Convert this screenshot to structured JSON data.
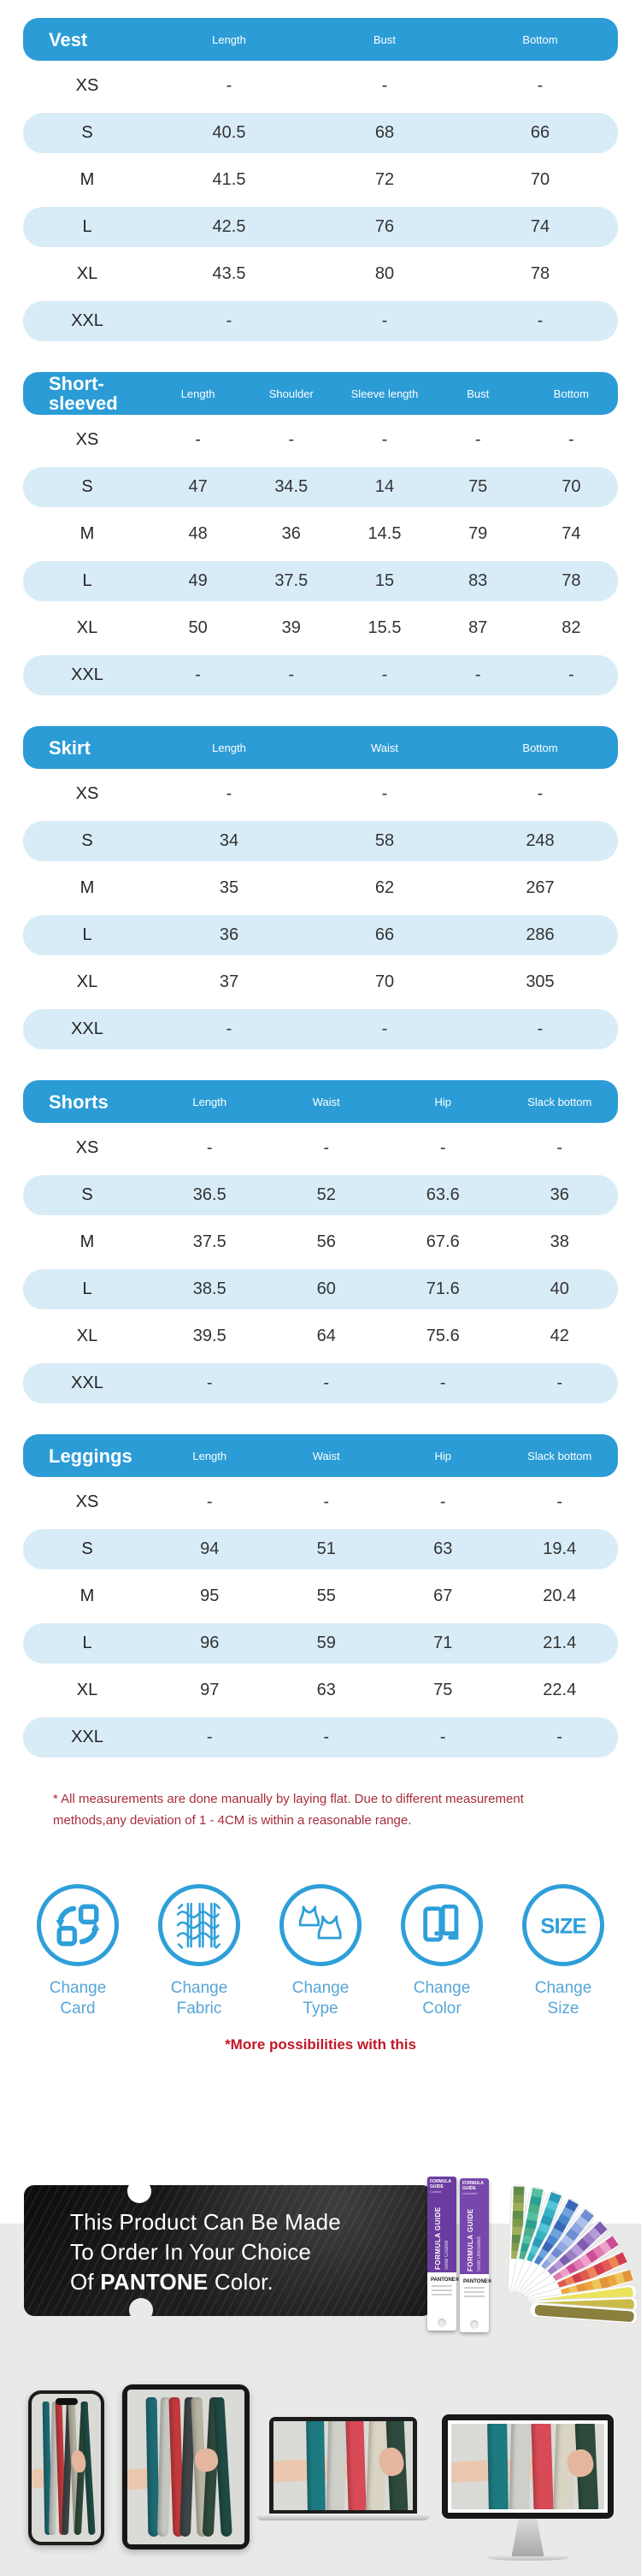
{
  "colors": {
    "accent_blue": "#2E9FD9",
    "header_blue": "#2B9CD6",
    "row_alt_blue": "#D8ECF8",
    "label_blue": "#56A6D9",
    "disclaimer_red": "#A82C3A",
    "note_red": "#C11728",
    "gray_background": "#E9E9E8",
    "pantone_purple": "#6A3C9F"
  },
  "tables": [
    {
      "name": "Vest",
      "columns": [
        "Length",
        "Bust",
        "Bottom"
      ],
      "rows": [
        {
          "size": "XS",
          "values": [
            "-",
            "-",
            "-"
          ]
        },
        {
          "size": "S",
          "values": [
            "40.5",
            "68",
            "66"
          ]
        },
        {
          "size": "M",
          "values": [
            "41.5",
            "72",
            "70"
          ]
        },
        {
          "size": "L",
          "values": [
            "42.5",
            "76",
            "74"
          ]
        },
        {
          "size": "XL",
          "values": [
            "43.5",
            "80",
            "78"
          ]
        },
        {
          "size": "XXL",
          "values": [
            "-",
            "-",
            "-"
          ]
        }
      ]
    },
    {
      "name": "Short-sleeved",
      "columns": [
        "Length",
        "Shoulder",
        "Sleeve length",
        "Bust",
        "Bottom"
      ],
      "rows": [
        {
          "size": "XS",
          "values": [
            "-",
            "-",
            "-",
            "-",
            "-"
          ]
        },
        {
          "size": "S",
          "values": [
            "47",
            "34.5",
            "14",
            "75",
            "70"
          ]
        },
        {
          "size": "M",
          "values": [
            "48",
            "36",
            "14.5",
            "79",
            "74"
          ]
        },
        {
          "size": "L",
          "values": [
            "49",
            "37.5",
            "15",
            "83",
            "78"
          ]
        },
        {
          "size": "XL",
          "values": [
            "50",
            "39",
            "15.5",
            "87",
            "82"
          ]
        },
        {
          "size": "XXL",
          "values": [
            "-",
            "-",
            "-",
            "-",
            "-"
          ]
        }
      ]
    },
    {
      "name": "Skirt",
      "columns": [
        "Length",
        "Waist",
        "Bottom"
      ],
      "rows": [
        {
          "size": "XS",
          "values": [
            "-",
            "-",
            "-"
          ]
        },
        {
          "size": "S",
          "values": [
            "34",
            "58",
            "248"
          ]
        },
        {
          "size": "M",
          "values": [
            "35",
            "62",
            "267"
          ]
        },
        {
          "size": "L",
          "values": [
            "36",
            "66",
            "286"
          ]
        },
        {
          "size": "XL",
          "values": [
            "37",
            "70",
            "305"
          ]
        },
        {
          "size": "XXL",
          "values": [
            "-",
            "-",
            "-"
          ]
        }
      ]
    },
    {
      "name": "Shorts",
      "columns": [
        "Length",
        "Waist",
        "Hip",
        "Slack bottom"
      ],
      "rows": [
        {
          "size": "XS",
          "values": [
            "-",
            "-",
            "-",
            "-"
          ]
        },
        {
          "size": "S",
          "values": [
            "36.5",
            "52",
            "63.6",
            "36"
          ]
        },
        {
          "size": "M",
          "values": [
            "37.5",
            "56",
            "67.6",
            "38"
          ]
        },
        {
          "size": "L",
          "values": [
            "38.5",
            "60",
            "71.6",
            "40"
          ]
        },
        {
          "size": "XL",
          "values": [
            "39.5",
            "64",
            "75.6",
            "42"
          ]
        },
        {
          "size": "XXL",
          "values": [
            "-",
            "-",
            "-",
            "-"
          ]
        }
      ]
    },
    {
      "name": "Leggings",
      "columns": [
        "Length",
        "Waist",
        "Hip",
        "Slack bottom"
      ],
      "rows": [
        {
          "size": "XS",
          "values": [
            "-",
            "-",
            "-",
            "-"
          ]
        },
        {
          "size": "S",
          "values": [
            "94",
            "51",
            "63",
            "19.4"
          ]
        },
        {
          "size": "M",
          "values": [
            "95",
            "55",
            "67",
            "20.4"
          ]
        },
        {
          "size": "L",
          "values": [
            "96",
            "59",
            "71",
            "21.4"
          ]
        },
        {
          "size": "XL",
          "values": [
            "97",
            "63",
            "75",
            "22.4"
          ]
        },
        {
          "size": "XXL",
          "values": [
            "-",
            "-",
            "-",
            "-"
          ]
        }
      ]
    }
  ],
  "disclaimer": "* All measurements are done manually by laying flat. Due to different measurement methods,any deviation of 1 - 4CM is within a reasonable range.",
  "features": [
    {
      "line1": "Change",
      "line2": "Card",
      "icon": "swap-squares-icon"
    },
    {
      "line1": "Change",
      "line2": "Fabric",
      "icon": "fabric-weave-icon"
    },
    {
      "line1": "Change",
      "line2": "Type",
      "icon": "sports-bra-icon"
    },
    {
      "line1": "Change",
      "line2": "Color",
      "icon": "swatch-book-icon"
    },
    {
      "line1": "Change",
      "line2": "Size",
      "icon": "size-text-icon",
      "icon_text": "SIZE"
    }
  ],
  "more_note": "*More possibilities with this",
  "banner": {
    "line1": "This Product Can Be Made",
    "line2": "To Order In Your Choice",
    "line3_pre": "Of ",
    "line3_bold": "PANTONE",
    "line3_post": " Color."
  },
  "pantone": {
    "brand": "PANTONE®",
    "cards": [
      {
        "top": "FORMULA GUIDE",
        "top2": "Coated",
        "title": "FORMULA GUIDE",
        "subtitle": "Solid Coated"
      },
      {
        "top": "FORMULA GUIDE",
        "top2": "Uncoated",
        "title": "FORMULA GUIDE",
        "subtitle": "Solid Uncoated"
      }
    ],
    "fan": [
      {
        "angle": 88,
        "colors": [
          "#9FAE5A",
          "#7D9A4E",
          "#5F8C4A"
        ]
      },
      {
        "angle": 79,
        "colors": [
          "#4CAE89",
          "#2AA18E",
          "#55BFA0"
        ]
      },
      {
        "angle": 70,
        "colors": [
          "#35B2C0",
          "#52C4D6",
          "#2A9AB8"
        ]
      },
      {
        "angle": 61,
        "colors": [
          "#4A86CC",
          "#6FA3DC",
          "#3A66B8"
        ]
      },
      {
        "angle": 52,
        "colors": [
          "#8FA8E0",
          "#AEBFE9",
          "#6F8ED2"
        ]
      },
      {
        "angle": 43,
        "colors": [
          "#9A7FC5",
          "#B79AD8",
          "#7E5CB0"
        ]
      },
      {
        "angle": 34,
        "colors": [
          "#E07AB2",
          "#EDA0C8",
          "#CC4F96"
        ]
      },
      {
        "angle": 25,
        "colors": [
          "#E05A52",
          "#EA8656",
          "#D23C50"
        ]
      },
      {
        "angle": 16,
        "colors": [
          "#EDA43C",
          "#EEC45A",
          "#E2953A"
        ]
      },
      {
        "angle": 8,
        "colors": [
          "#E9E35E"
        ]
      },
      {
        "angle": 2,
        "colors": [
          "#C9BB4A"
        ]
      },
      {
        "angle": -4,
        "colors": [
          "#8A7F3D"
        ]
      }
    ]
  },
  "fabric": {
    "far": {
      "colors": [
        "#1D6A74",
        "#C6C7C1",
        "#C23A3C",
        "#3D4446",
        "#B8B3A3",
        "#2E4A3C",
        "#1F4A44"
      ]
    },
    "near": {
      "colors": [
        "#1D7A80",
        "#CFCFC9",
        "#D84A56",
        "#D9D4C4",
        "#2E4A3C"
      ]
    }
  }
}
